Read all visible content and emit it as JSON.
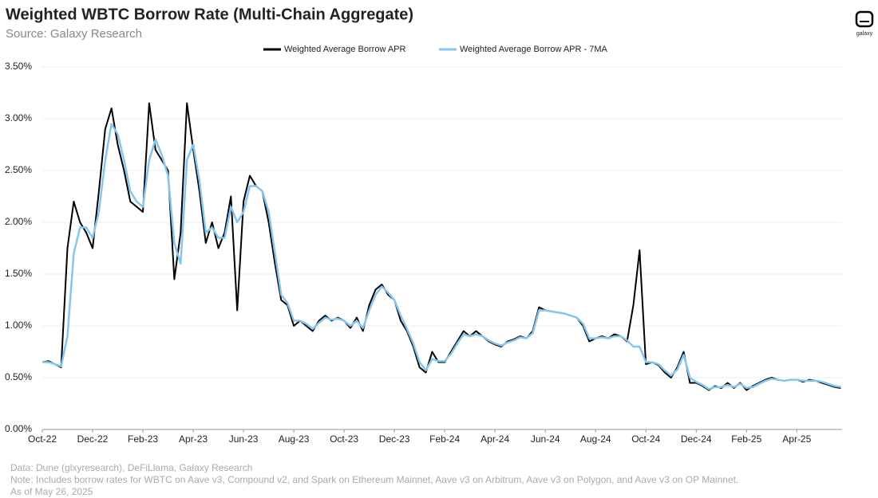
{
  "chart_data": {
    "type": "line",
    "title": "Weighted WBTC Borrow Rate (Multi-Chain Aggregate)",
    "subtitle": "Source: Galaxy Research",
    "logo": "galaxy",
    "notes": [
      "Data: Dune (glxyresearch), DeFiLlama, Galaxy Research",
      "Note: Includes borrow rates for WBTC on Aave v3, Compound v2, and Spark on Ethereum Mainnet, Aave v3 on Arbitrum, Aave v3 on Polygon, and Aave v3 on OP Mainnet.",
      "As of May 26, 2025"
    ],
    "xlim": [
      0,
      31.8
    ],
    "ylim": [
      0,
      3.5
    ],
    "grid": true,
    "legend": "top",
    "xticks": [
      {
        "value": 0,
        "label": "Oct-22"
      },
      {
        "value": 2,
        "label": "Dec-22"
      },
      {
        "value": 4,
        "label": "Feb-23"
      },
      {
        "value": 6,
        "label": "Apr-23"
      },
      {
        "value": 8,
        "label": "Jun-23"
      },
      {
        "value": 10,
        "label": "Aug-23"
      },
      {
        "value": 12,
        "label": "Oct-23"
      },
      {
        "value": 14,
        "label": "Dec-23"
      },
      {
        "value": 16,
        "label": "Feb-24"
      },
      {
        "value": 18,
        "label": "Apr-24"
      },
      {
        "value": 20,
        "label": "Jun-24"
      },
      {
        "value": 22,
        "label": "Aug-24"
      },
      {
        "value": 24,
        "label": "Oct-24"
      },
      {
        "value": 26,
        "label": "Dec-24"
      },
      {
        "value": 28,
        "label": "Feb-25"
      },
      {
        "value": 30,
        "label": "Apr-25"
      }
    ],
    "yticks": [
      {
        "value": 0,
        "label": "0.00%"
      },
      {
        "value": 0.5,
        "label": "0.50%"
      },
      {
        "value": 1,
        "label": "1.00%"
      },
      {
        "value": 1.5,
        "label": "1.50%"
      },
      {
        "value": 2,
        "label": "2.00%"
      },
      {
        "value": 2.5,
        "label": "2.50%"
      },
      {
        "value": 3,
        "label": "3.00%"
      },
      {
        "value": 3.5,
        "label": "3.50%"
      }
    ],
    "x": [
      0,
      0.25,
      0.5,
      0.75,
      1,
      1.25,
      1.5,
      1.75,
      2,
      2.25,
      2.5,
      2.75,
      3,
      3.25,
      3.5,
      3.75,
      4,
      4.25,
      4.5,
      4.75,
      5,
      5.25,
      5.5,
      5.75,
      6,
      6.25,
      6.5,
      6.75,
      7,
      7.25,
      7.5,
      7.75,
      8,
      8.25,
      8.5,
      8.75,
      9,
      9.25,
      9.5,
      9.75,
      10,
      10.25,
      10.5,
      10.75,
      11,
      11.25,
      11.5,
      11.75,
      12,
      12.25,
      12.5,
      12.75,
      13,
      13.25,
      13.5,
      13.75,
      14,
      14.25,
      14.5,
      14.75,
      15,
      15.25,
      15.5,
      15.75,
      16,
      16.25,
      16.5,
      16.75,
      17,
      17.25,
      17.5,
      17.75,
      18,
      18.25,
      18.5,
      18.75,
      19,
      19.25,
      19.5,
      19.75,
      20,
      20.25,
      20.5,
      20.75,
      21,
      21.25,
      21.5,
      21.75,
      22,
      22.25,
      22.5,
      22.75,
      23,
      23.25,
      23.5,
      23.75,
      24,
      24.25,
      24.5,
      24.75,
      25,
      25.25,
      25.5,
      25.75,
      26,
      26.25,
      26.5,
      26.75,
      27,
      27.25,
      27.5,
      27.75,
      28,
      28.25,
      28.5,
      28.75,
      29,
      29.25,
      29.5,
      29.75,
      30,
      30.25,
      30.5,
      30.75,
      31,
      31.25,
      31.5,
      31.75
    ],
    "series": [
      {
        "name": "Weighted Average Borrow APR",
        "color": "#000000",
        "values": [
          0.65,
          0.66,
          0.63,
          0.6,
          1.75,
          2.2,
          2.0,
          1.9,
          1.75,
          2.3,
          2.9,
          3.1,
          2.75,
          2.5,
          2.2,
          2.15,
          2.1,
          3.15,
          2.7,
          2.6,
          2.5,
          1.45,
          1.9,
          3.15,
          2.7,
          2.3,
          1.8,
          2.0,
          1.75,
          1.9,
          2.25,
          1.15,
          2.2,
          2.45,
          2.35,
          2.3,
          2.0,
          1.6,
          1.25,
          1.2,
          1.0,
          1.05,
          1.0,
          0.95,
          1.05,
          1.1,
          1.05,
          1.08,
          1.05,
          0.98,
          1.08,
          0.95,
          1.2,
          1.35,
          1.4,
          1.3,
          1.25,
          1.05,
          0.95,
          0.8,
          0.6,
          0.55,
          0.75,
          0.65,
          0.65,
          0.75,
          0.85,
          0.95,
          0.9,
          0.95,
          0.9,
          0.85,
          0.82,
          0.8,
          0.85,
          0.87,
          0.9,
          0.88,
          0.95,
          1.18,
          1.15,
          1.14,
          1.13,
          1.12,
          1.1,
          1.08,
          1.0,
          0.85,
          0.88,
          0.9,
          0.88,
          0.92,
          0.9,
          0.85,
          1.2,
          1.73,
          0.63,
          0.65,
          0.62,
          0.55,
          0.5,
          0.6,
          0.75,
          0.45,
          0.45,
          0.42,
          0.38,
          0.42,
          0.4,
          0.45,
          0.4,
          0.45,
          0.38,
          0.42,
          0.45,
          0.48,
          0.5,
          0.48,
          0.47,
          0.48,
          0.48,
          0.46,
          0.48,
          0.47,
          0.45,
          0.43,
          0.41,
          0.4
        ]
      },
      {
        "name": "Weighted Average Borrow APR - 7MA",
        "color": "#84c6ee",
        "values": [
          0.65,
          0.65,
          0.63,
          0.61,
          0.9,
          1.7,
          1.95,
          1.95,
          1.85,
          2.1,
          2.6,
          2.95,
          2.85,
          2.6,
          2.3,
          2.2,
          2.15,
          2.6,
          2.8,
          2.65,
          2.45,
          1.8,
          1.6,
          2.6,
          2.75,
          2.4,
          1.9,
          1.95,
          1.85,
          1.85,
          2.15,
          2.0,
          2.1,
          2.35,
          2.35,
          2.3,
          2.1,
          1.7,
          1.3,
          1.22,
          1.05,
          1.05,
          1.02,
          0.97,
          1.03,
          1.08,
          1.06,
          1.07,
          1.05,
          1.0,
          1.05,
          0.98,
          1.15,
          1.3,
          1.38,
          1.32,
          1.25,
          1.1,
          0.97,
          0.83,
          0.65,
          0.57,
          0.68,
          0.66,
          0.66,
          0.73,
          0.83,
          0.92,
          0.9,
          0.92,
          0.9,
          0.86,
          0.83,
          0.81,
          0.84,
          0.86,
          0.89,
          0.88,
          0.93,
          1.15,
          1.15,
          1.14,
          1.13,
          1.12,
          1.1,
          1.08,
          1.02,
          0.88,
          0.88,
          0.89,
          0.88,
          0.9,
          0.9,
          0.86,
          0.8,
          0.8,
          0.65,
          0.65,
          0.63,
          0.57,
          0.52,
          0.58,
          0.72,
          0.5,
          0.46,
          0.43,
          0.39,
          0.41,
          0.41,
          0.43,
          0.41,
          0.44,
          0.4,
          0.41,
          0.44,
          0.47,
          0.49,
          0.48,
          0.47,
          0.48,
          0.48,
          0.47,
          0.47,
          0.47,
          0.46,
          0.44,
          0.42,
          0.41
        ]
      }
    ]
  }
}
